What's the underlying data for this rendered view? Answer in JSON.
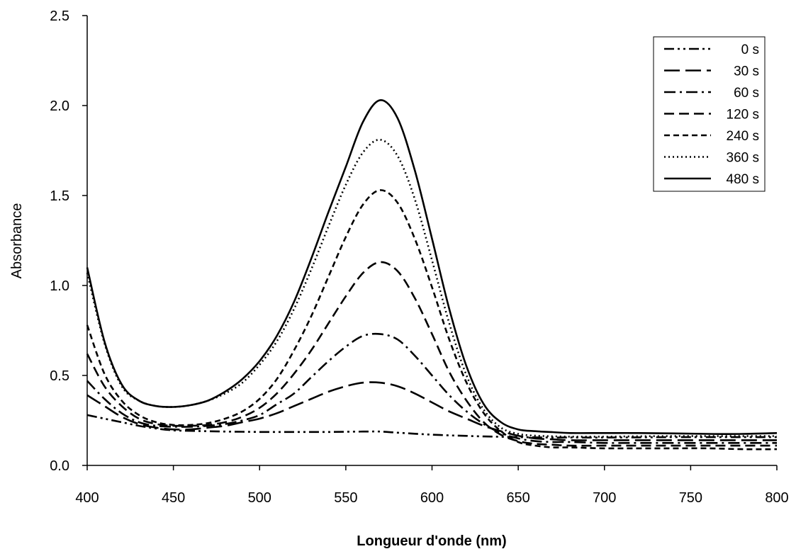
{
  "chart_data": {
    "type": "line",
    "xlabel": "Longueur d'onde (nm)",
    "ylabel": "Absorbance",
    "xlim": [
      400,
      800
    ],
    "ylim": [
      0,
      2.5
    ],
    "xticks": [
      "400",
      "450",
      "500",
      "550",
      "600",
      "650",
      "700",
      "750",
      "800"
    ],
    "yticks": [
      "0.0",
      "0.5",
      "1.0",
      "1.5",
      "2.0",
      "2.5"
    ],
    "grid": false,
    "legend_position": "top-right",
    "x": [
      400,
      410,
      420,
      430,
      440,
      450,
      460,
      470,
      480,
      490,
      500,
      510,
      520,
      530,
      540,
      550,
      560,
      570,
      580,
      590,
      600,
      610,
      620,
      630,
      640,
      650,
      660,
      670,
      680,
      700,
      720,
      740,
      760,
      780,
      800
    ],
    "series": [
      {
        "name": "0 s",
        "dash": "14 5 3 5 3 5",
        "values": [
          0.28,
          0.26,
          0.24,
          0.22,
          0.205,
          0.195,
          0.192,
          0.19,
          0.188,
          0.187,
          0.186,
          0.186,
          0.186,
          0.186,
          0.186,
          0.187,
          0.188,
          0.188,
          0.182,
          0.176,
          0.171,
          0.167,
          0.164,
          0.161,
          0.159,
          0.157,
          0.156,
          0.155,
          0.155,
          0.155,
          0.156,
          0.157,
          0.157,
          0.157,
          0.157
        ]
      },
      {
        "name": "30 s",
        "dash": "22 8",
        "values": [
          0.39,
          0.33,
          0.27,
          0.23,
          0.21,
          0.2,
          0.2,
          0.21,
          0.22,
          0.24,
          0.26,
          0.29,
          0.33,
          0.37,
          0.41,
          0.44,
          0.46,
          0.46,
          0.44,
          0.4,
          0.35,
          0.3,
          0.26,
          0.22,
          0.19,
          0.165,
          0.15,
          0.145,
          0.14,
          0.14,
          0.14,
          0.14,
          0.14,
          0.14,
          0.14
        ]
      },
      {
        "name": "60 s",
        "dash": "16 6 3 6",
        "values": [
          0.47,
          0.37,
          0.29,
          0.24,
          0.22,
          0.215,
          0.215,
          0.22,
          0.23,
          0.25,
          0.28,
          0.34,
          0.4,
          0.49,
          0.58,
          0.66,
          0.72,
          0.73,
          0.7,
          0.61,
          0.5,
          0.39,
          0.3,
          0.23,
          0.18,
          0.15,
          0.135,
          0.13,
          0.13,
          0.125,
          0.125,
          0.125,
          0.125,
          0.125,
          0.125
        ]
      },
      {
        "name": "120 s",
        "dash": "14 7",
        "values": [
          0.62,
          0.44,
          0.33,
          0.26,
          0.23,
          0.22,
          0.22,
          0.225,
          0.24,
          0.27,
          0.32,
          0.4,
          0.51,
          0.64,
          0.79,
          0.94,
          1.07,
          1.13,
          1.08,
          0.93,
          0.73,
          0.52,
          0.36,
          0.24,
          0.17,
          0.135,
          0.12,
          0.115,
          0.11,
          0.11,
          0.11,
          0.11,
          0.11,
          0.11,
          0.11
        ]
      },
      {
        "name": "240 s",
        "dash": "8 5",
        "values": [
          0.78,
          0.51,
          0.36,
          0.28,
          0.24,
          0.225,
          0.225,
          0.235,
          0.26,
          0.3,
          0.37,
          0.48,
          0.64,
          0.83,
          1.05,
          1.27,
          1.45,
          1.53,
          1.46,
          1.26,
          0.99,
          0.7,
          0.46,
          0.29,
          0.19,
          0.13,
          0.11,
          0.1,
          0.1,
          0.095,
          0.095,
          0.095,
          0.095,
          0.09,
          0.09
        ]
      },
      {
        "name": "360 s",
        "dash": "2 4",
        "values": [
          1.07,
          0.68,
          0.44,
          0.36,
          0.33,
          0.325,
          0.335,
          0.36,
          0.4,
          0.46,
          0.56,
          0.69,
          0.87,
          1.09,
          1.33,
          1.56,
          1.74,
          1.81,
          1.72,
          1.48,
          1.14,
          0.79,
          0.5,
          0.31,
          0.21,
          0.175,
          0.165,
          0.162,
          0.16,
          0.16,
          0.162,
          0.163,
          0.163,
          0.163,
          0.163
        ]
      },
      {
        "name": "480 s",
        "dash": "",
        "values": [
          1.1,
          0.69,
          0.45,
          0.36,
          0.33,
          0.325,
          0.335,
          0.36,
          0.41,
          0.48,
          0.58,
          0.72,
          0.91,
          1.15,
          1.41,
          1.66,
          1.91,
          2.03,
          1.93,
          1.64,
          1.26,
          0.87,
          0.55,
          0.34,
          0.24,
          0.2,
          0.19,
          0.185,
          0.18,
          0.18,
          0.18,
          0.178,
          0.175,
          0.175,
          0.18
        ]
      }
    ]
  }
}
